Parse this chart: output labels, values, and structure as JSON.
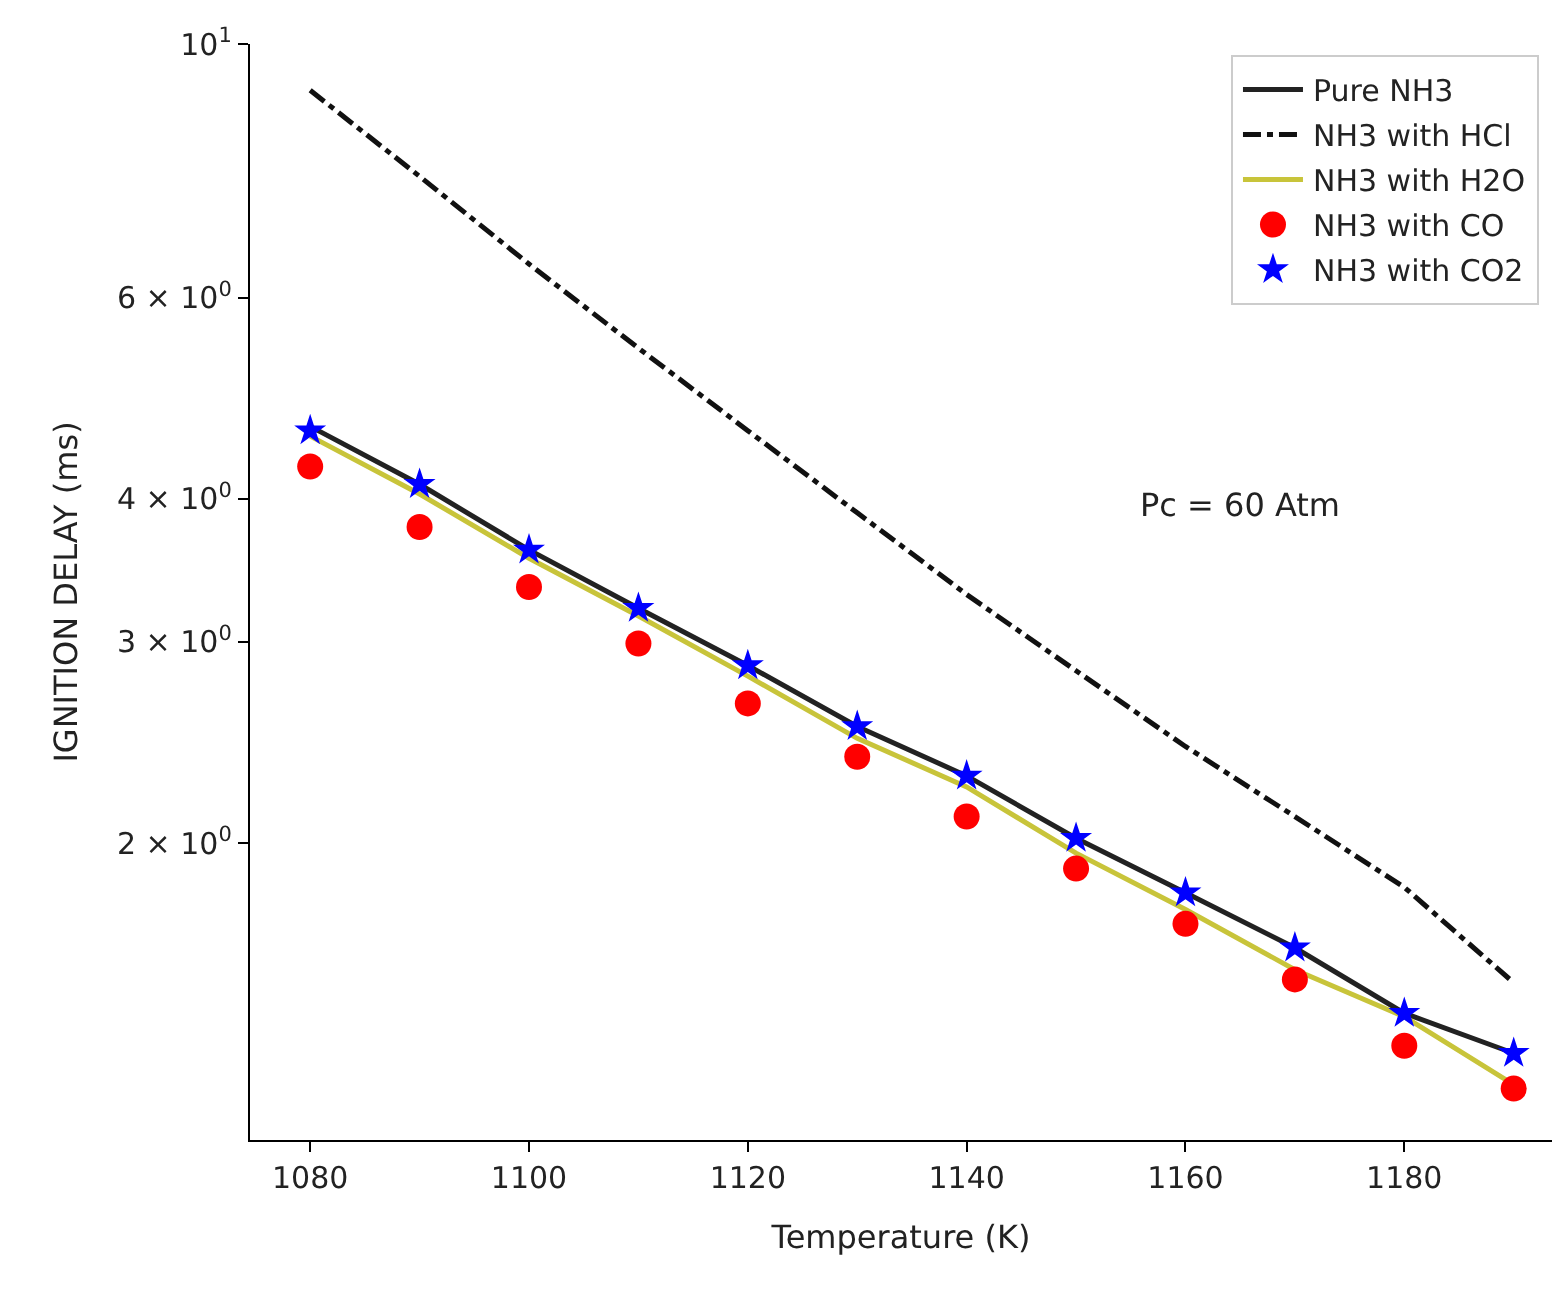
{
  "chart_data": {
    "type": "line",
    "xlabel": "Temperature (K)",
    "ylabel": "IGNITION DELAY (ms)",
    "x": [
      1080,
      1090,
      1100,
      1110,
      1120,
      1130,
      1140,
      1150,
      1160,
      1170,
      1180,
      1190
    ],
    "series": [
      {
        "name": "Pure NH3",
        "line_style": "solid",
        "color": "#222222",
        "values": [
          4.63,
          4.12,
          3.61,
          3.21,
          2.86,
          2.53,
          2.29,
          2.02,
          1.81,
          1.62,
          1.42,
          1.31
        ]
      },
      {
        "name": "NH3 with HCl",
        "line_style": "dashdot",
        "color": "#111111",
        "values": [
          9.11,
          7.66,
          6.42,
          5.42,
          4.59,
          3.89,
          3.3,
          2.83,
          2.43,
          2.11,
          1.83,
          1.51
        ]
      },
      {
        "name": "NH3 with H2O",
        "line_style": "solid",
        "color": "#c8c43a",
        "values": [
          4.54,
          4.04,
          3.55,
          3.16,
          2.8,
          2.47,
          2.24,
          1.96,
          1.75,
          1.55,
          1.41,
          1.23
        ]
      },
      {
        "name": "NH3 with CO",
        "type": "scatter",
        "marker": "circle",
        "color": "#ff0000",
        "values": [
          4.27,
          3.78,
          3.35,
          2.99,
          2.65,
          2.38,
          2.11,
          1.9,
          1.7,
          1.52,
          1.33,
          1.22
        ]
      },
      {
        "name": "NH3 with CO2",
        "type": "scatter",
        "marker": "star",
        "color": "#0000ff",
        "values": [
          4.59,
          4.12,
          3.61,
          3.21,
          2.86,
          2.53,
          2.29,
          2.02,
          1.81,
          1.62,
          1.42,
          1.31
        ]
      }
    ],
    "log": "y",
    "xlim": [
      1074.5,
      1193.5
    ],
    "ylim": [
      1.1,
      10
    ],
    "xticks": [
      1080,
      1100,
      1120,
      1140,
      1160,
      1180
    ],
    "yticks": [
      {
        "value": 2,
        "label": "2 × 10$^{0}$"
      },
      {
        "value": 3,
        "label": "3 × 10$^{0}$"
      },
      {
        "value": 4,
        "label": "4 × 10$^{0}$"
      },
      {
        "value": 6,
        "label": "6 × 10$^{0}$"
      },
      {
        "value": 10,
        "label": "10$^{1}$"
      }
    ],
    "legend": "top right",
    "annotations": [
      "Pc = 60 Atm"
    ]
  }
}
